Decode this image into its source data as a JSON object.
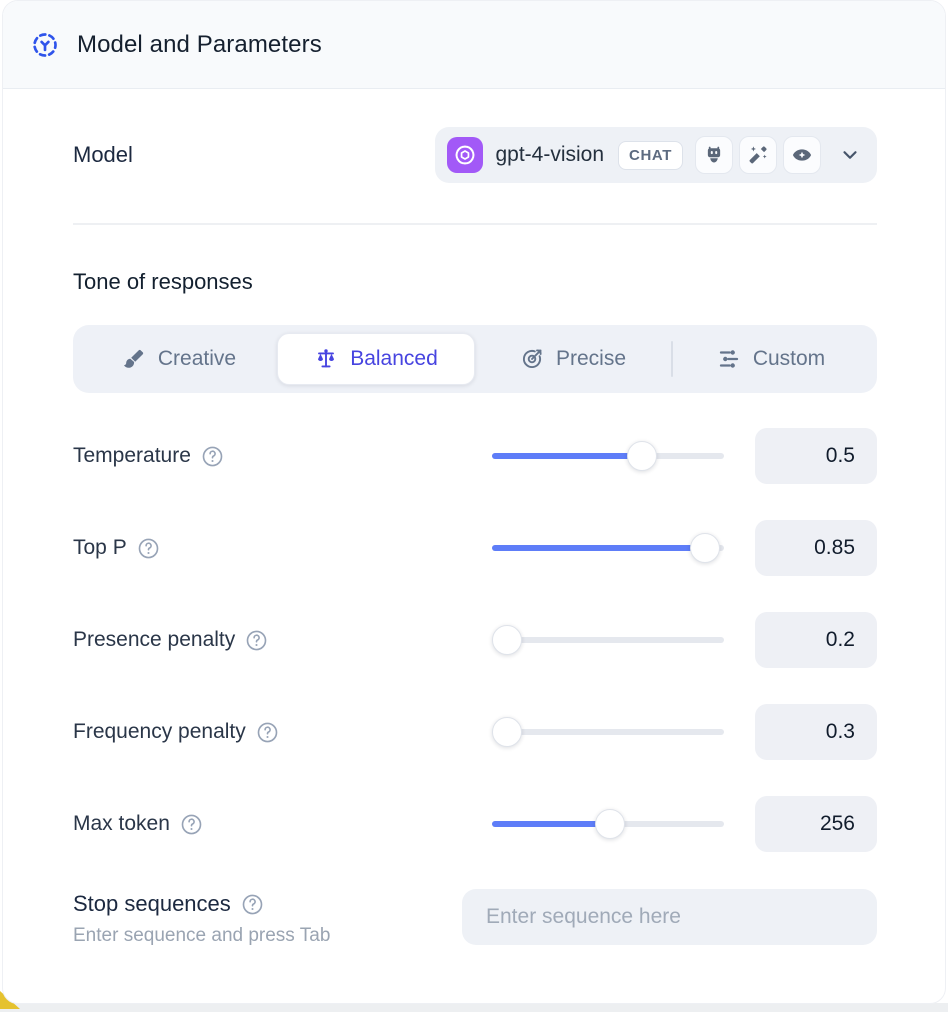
{
  "header": {
    "title": "Model and Parameters",
    "icon": "model-scan-icon"
  },
  "model": {
    "label": "Model",
    "name": "gpt-4-vision",
    "badge": "CHAT",
    "provider_icon": "openai-logo-icon",
    "capability_icons": [
      "robot-icon",
      "magic-wand-icon",
      "vision-eye-icon"
    ]
  },
  "tone": {
    "heading": "Tone of responses",
    "options": [
      {
        "label": "Creative",
        "icon": "brush-icon",
        "active": false
      },
      {
        "label": "Balanced",
        "icon": "balance-icon",
        "active": true
      },
      {
        "label": "Precise",
        "icon": "target-icon",
        "active": false
      },
      {
        "label": "Custom",
        "icon": "sliders-icon",
        "active": false
      }
    ]
  },
  "parameters": [
    {
      "label": "Temperature",
      "value": "0.5",
      "slider_percent": 67
    },
    {
      "label": "Top P",
      "value": "0.85",
      "slider_percent": 98
    },
    {
      "label": "Presence penalty",
      "value": "0.2",
      "slider_percent": 0
    },
    {
      "label": "Frequency penalty",
      "value": "0.3",
      "slider_percent": 0
    },
    {
      "label": "Max token",
      "value": "256",
      "slider_percent": 51
    }
  ],
  "stop_sequences": {
    "label": "Stop sequences",
    "helper": "Enter sequence and press Tab",
    "placeholder": "Enter sequence here"
  },
  "colors": {
    "header_icon_blue": "#2f54eb",
    "active_tone_indigo": "#4744e0",
    "slider_blue": "#5e7df8",
    "model_icon_purple": "#a259f7",
    "value_box_bg": "#eef0f5",
    "segmented_bg": "#eef1f7"
  }
}
